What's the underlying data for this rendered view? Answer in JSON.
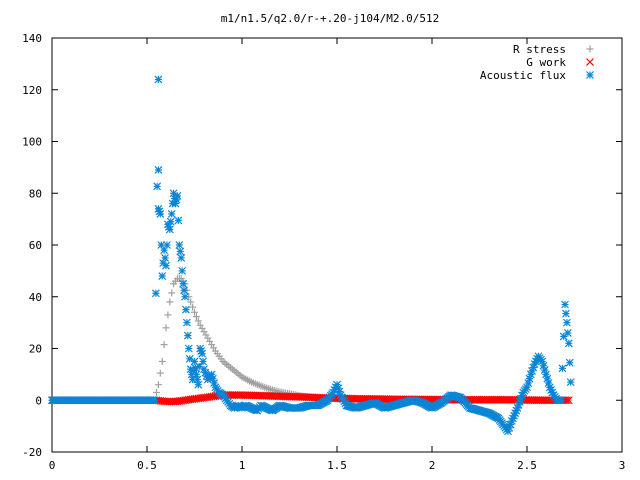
{
  "chart_data": {
    "type": "scatter",
    "title": "m1/n1.5/q2.0/r-+.20-j104/M2.0/512",
    "xlabel": "",
    "ylabel": "",
    "xlim": [
      0,
      3
    ],
    "ylim": [
      -20,
      140
    ],
    "xticks": [
      0,
      0.5,
      1,
      1.5,
      2,
      2.5,
      3
    ],
    "xtick_labels": [
      "0",
      "0.5",
      "1",
      "1.5",
      "2",
      "2.5",
      "3"
    ],
    "yticks": [
      -20,
      0,
      20,
      40,
      60,
      80,
      100,
      120,
      140
    ],
    "ytick_labels": [
      "-20",
      "0",
      "20",
      "40",
      "60",
      "80",
      "100",
      "120",
      "140"
    ],
    "grid": false,
    "legend_position": "top-right",
    "series": [
      {
        "name": "R stress",
        "marker": "plus",
        "color": "#a0a0a0",
        "x": [
          0.0,
          0.1,
          0.2,
          0.3,
          0.4,
          0.5,
          0.54,
          0.56,
          0.58,
          0.6,
          0.62,
          0.64,
          0.66,
          0.68,
          0.7,
          0.72,
          0.75,
          0.78,
          0.82,
          0.86,
          0.9,
          0.95,
          1.0,
          1.05,
          1.1,
          1.15,
          1.2,
          1.25,
          1.3,
          1.35,
          1.4,
          1.5,
          1.6,
          1.8,
          2.0,
          2.2,
          2.4,
          2.6,
          2.72
        ],
        "y": [
          0,
          0,
          0,
          0,
          0,
          0,
          0,
          6,
          15,
          28,
          38,
          45,
          47,
          47,
          45,
          40,
          34,
          29,
          24,
          19,
          15,
          12,
          9,
          7,
          5.5,
          4.2,
          3.2,
          2.5,
          1.8,
          1.3,
          1,
          0.5,
          0.3,
          0,
          0,
          0,
          0,
          0,
          0
        ]
      },
      {
        "name": "G work",
        "marker": "x",
        "color": "#ff0000",
        "x": [
          0.0,
          0.2,
          0.4,
          0.55,
          0.6,
          0.65,
          0.7,
          0.75,
          0.8,
          0.85,
          0.9,
          0.95,
          1.0,
          1.1,
          1.2,
          1.3,
          1.4,
          1.5,
          1.6,
          1.8,
          2.0,
          2.2,
          2.4,
          2.6,
          2.72
        ],
        "y": [
          0,
          0,
          0,
          0,
          -0.5,
          -0.5,
          0,
          0.5,
          1,
          1.5,
          2,
          2,
          2,
          1.8,
          1.5,
          1.3,
          1,
          0.8,
          0.6,
          0.4,
          0.3,
          0.2,
          0.2,
          0,
          0
        ]
      },
      {
        "name": "Acoustic flux",
        "marker": "star",
        "color": "#0a85d6",
        "x": [
          0.0,
          0.1,
          0.2,
          0.3,
          0.4,
          0.5,
          0.54,
          0.56,
          0.56,
          0.56,
          0.57,
          0.58,
          0.59,
          0.6,
          0.61,
          0.62,
          0.63,
          0.64,
          0.65,
          0.66,
          0.67,
          0.68,
          0.69,
          0.7,
          0.71,
          0.72,
          0.73,
          0.74,
          0.75,
          0.76,
          0.77,
          0.78,
          0.79,
          0.8,
          0.82,
          0.84,
          0.86,
          0.88,
          0.9,
          0.92,
          0.94,
          0.96,
          0.98,
          1.0,
          1.02,
          1.05,
          1.08,
          1.1,
          1.13,
          1.16,
          1.2,
          1.25,
          1.3,
          1.35,
          1.4,
          1.45,
          1.48,
          1.5,
          1.52,
          1.55,
          1.6,
          1.65,
          1.7,
          1.75,
          1.8,
          1.85,
          1.9,
          1.95,
          2.0,
          2.05,
          2.1,
          2.15,
          2.2,
          2.25,
          2.3,
          2.35,
          2.38,
          2.4,
          2.42,
          2.45,
          2.48,
          2.5,
          2.52,
          2.54,
          2.56,
          2.58,
          2.6,
          2.62,
          2.64,
          2.66,
          2.68,
          2.7,
          2.71,
          2.72,
          2.73
        ],
        "y": [
          0,
          0,
          0,
          0,
          0,
          0,
          0,
          124,
          89,
          74,
          72,
          48,
          58,
          52,
          68,
          66,
          72,
          80,
          76,
          79,
          60,
          55,
          45,
          40,
          30,
          20,
          12,
          8,
          15,
          10,
          6,
          20,
          18,
          12,
          8,
          10,
          5,
          3,
          2,
          0,
          -2,
          -3,
          -2,
          -3,
          -2,
          -3,
          -4,
          -2,
          -3,
          -4,
          -2,
          -3,
          -3,
          -2,
          -2,
          0,
          3,
          6,
          2,
          -2,
          -3,
          -2,
          -1,
          -3,
          -2,
          -1,
          0,
          -1,
          -3,
          -1,
          2,
          1,
          -3,
          -4,
          -5,
          -7,
          -10,
          -12,
          -8,
          -3,
          3,
          5,
          10,
          14,
          17,
          15,
          10,
          5,
          2,
          0,
          0,
          37,
          30,
          22,
          7
        ]
      }
    ]
  }
}
